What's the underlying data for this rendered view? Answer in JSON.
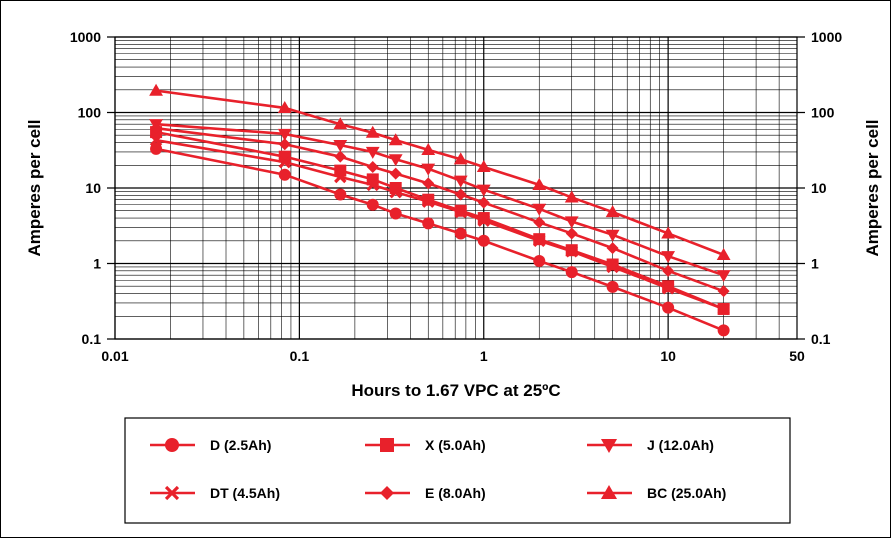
{
  "chart_data": {
    "type": "line",
    "title": "",
    "xlabel": "Hours to 1.67 VPC at 25ºC",
    "ylabel": "Amperes per cell",
    "ylabel_right": "Amperes per cell",
    "xscale": "log",
    "yscale": "log",
    "xlim": [
      0.01,
      50
    ],
    "ylim": [
      0.1,
      1000
    ],
    "x_tick_labels": [
      "0.01",
      "0.1",
      "1",
      "10",
      "50"
    ],
    "x_tick_values": [
      0.01,
      0.1,
      1,
      10,
      50
    ],
    "y_tick_labels": [
      "0.1",
      "1",
      "10",
      "100",
      "1000"
    ],
    "y_tick_values": [
      0.1,
      1,
      10,
      100,
      1000
    ],
    "grid": true,
    "legend_position": "bottom",
    "line_color": "#e8212b",
    "series": [
      {
        "name": "D (2.5Ah)",
        "marker": "circle",
        "x": [
          0.0167,
          0.0833,
          0.1667,
          0.25,
          0.333,
          0.5,
          0.75,
          1,
          2,
          3,
          5,
          10,
          20
        ],
        "y": [
          33,
          15,
          8.2,
          6,
          4.6,
          3.4,
          2.5,
          2,
          1.08,
          0.77,
          0.49,
          0.26,
          0.13
        ]
      },
      {
        "name": "X (5.0Ah)",
        "marker": "square",
        "x": [
          0.0167,
          0.0833,
          0.1667,
          0.25,
          0.333,
          0.5,
          0.75,
          1,
          2,
          3,
          5,
          10,
          20
        ],
        "y": [
          55,
          26,
          17,
          13,
          10,
          7,
          5,
          4,
          2.1,
          1.5,
          0.97,
          0.5,
          0.25
        ]
      },
      {
        "name": "J (12.0Ah)",
        "marker": "triangle-down",
        "x": [
          0.0167,
          0.0833,
          0.1667,
          0.25,
          0.333,
          0.5,
          0.75,
          1,
          2,
          3,
          5,
          10,
          20
        ],
        "y": [
          70,
          52,
          37,
          30,
          24,
          18,
          12.5,
          9.5,
          5.3,
          3.6,
          2.4,
          1.25,
          0.7
        ]
      },
      {
        "name": "DT (4.5Ah)",
        "marker": "x",
        "x": [
          0.0167,
          0.0833,
          0.1667,
          0.25,
          0.333,
          0.5,
          0.75,
          1,
          2,
          3,
          5,
          10,
          20
        ],
        "y": [
          43,
          22,
          14,
          11,
          8.8,
          6.6,
          4.8,
          3.7,
          2.0,
          1.45,
          0.9,
          0.47,
          0.25
        ]
      },
      {
        "name": "E (8.0Ah)",
        "marker": "diamond",
        "x": [
          0.0167,
          0.0833,
          0.1667,
          0.25,
          0.333,
          0.5,
          0.75,
          1,
          2,
          3,
          5,
          10,
          20
        ],
        "y": [
          62,
          38,
          26,
          19,
          15.5,
          11.5,
          8.2,
          6.4,
          3.5,
          2.5,
          1.6,
          0.8,
          0.43
        ]
      },
      {
        "name": "BC (25.0Ah)",
        "marker": "triangle-up",
        "x": [
          0.0167,
          0.0833,
          0.1667,
          0.25,
          0.333,
          0.5,
          0.75,
          1,
          2,
          3,
          5,
          10,
          20
        ],
        "y": [
          195,
          115,
          70,
          54,
          43,
          32,
          24,
          19,
          11,
          7.5,
          4.8,
          2.5,
          1.3
        ]
      }
    ]
  }
}
